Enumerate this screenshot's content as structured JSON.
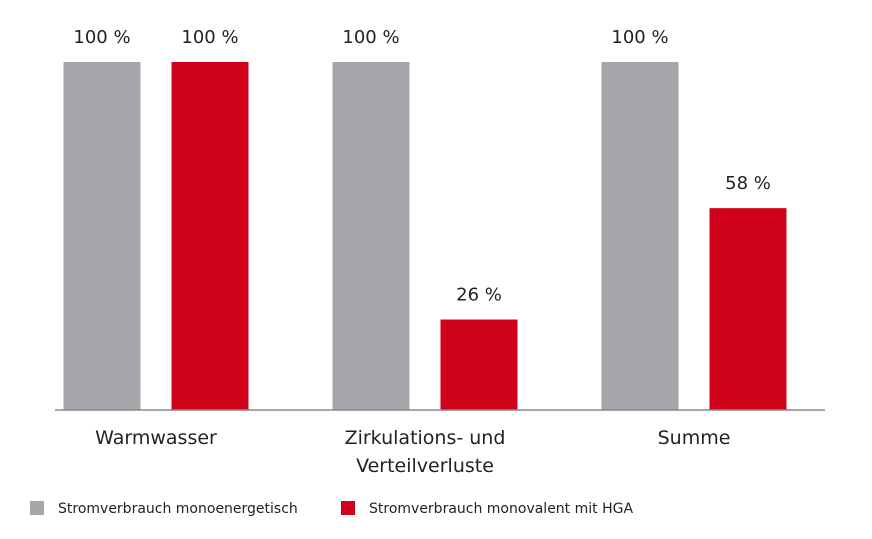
{
  "chart_data": {
    "type": "bar",
    "categories": [
      "Warmwasser",
      "Zirkulations- und Verteilverluste",
      "Summe"
    ],
    "series": [
      {
        "name": "Stromverbrauch monoenergetisch",
        "color": "#a6a7aa",
        "values": [
          100,
          100,
          100
        ],
        "value_labels": [
          "100 %",
          "100 %",
          "100 %"
        ]
      },
      {
        "name": "Stromverbrauch monovalent mit HGA",
        "color": "#d0021b",
        "values": [
          100,
          26,
          58
        ],
        "value_labels": [
          "100 %",
          "26 %",
          "58 %"
        ]
      }
    ],
    "ylim": [
      0,
      100
    ]
  }
}
